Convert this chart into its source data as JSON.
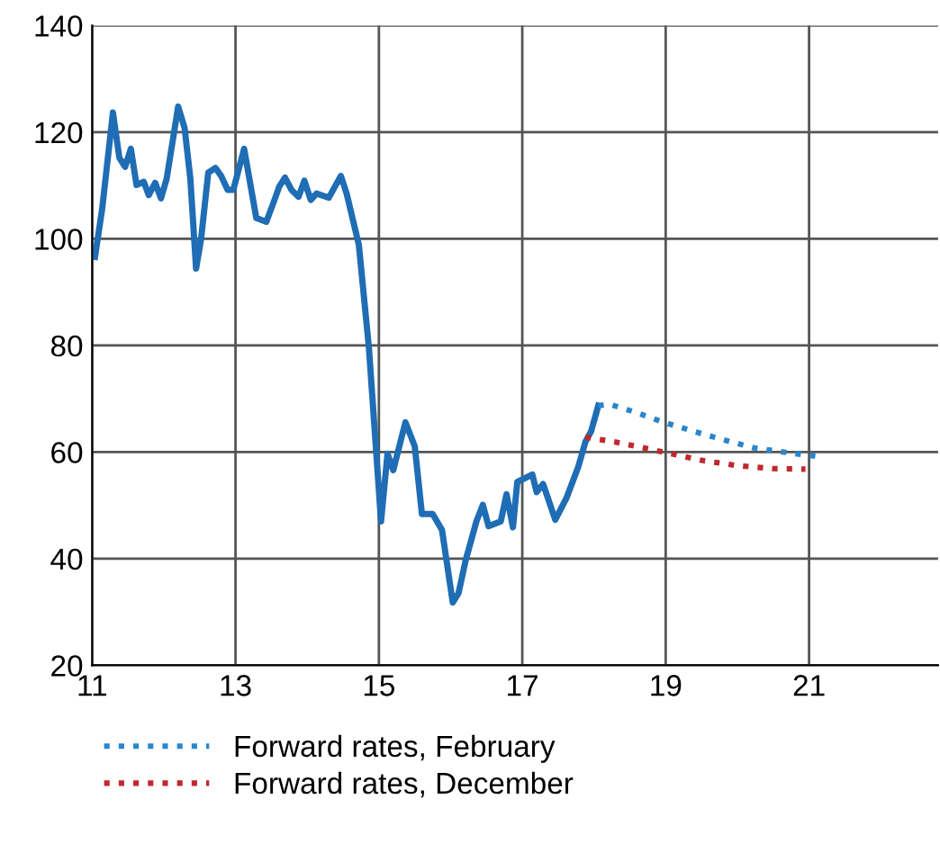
{
  "chart_data": {
    "type": "line",
    "series": [
      {
        "color": "#1f6db4",
        "line_style": "solid",
        "x": [
          11.04,
          11.14,
          11.29,
          11.38,
          11.46,
          11.54,
          11.62,
          11.72,
          11.79,
          11.88,
          11.96,
          12.04,
          12.2,
          12.29,
          12.37,
          12.45,
          12.52,
          12.62,
          12.72,
          12.8,
          12.89,
          12.97,
          13.12,
          13.29,
          13.43,
          13.53,
          13.61,
          13.69,
          13.78,
          13.88,
          13.96,
          14.05,
          14.13,
          14.3,
          14.47,
          14.55,
          14.72,
          14.86,
          15.03,
          15.12,
          15.2,
          15.37,
          15.5,
          15.6,
          15.75,
          15.88,
          16.03,
          16.11,
          16.21,
          16.36,
          16.45,
          16.53,
          16.7,
          16.78,
          16.87,
          16.93,
          17.14,
          17.2,
          17.29,
          17.46,
          17.62,
          17.78,
          17.88,
          17.96,
          18.06
        ],
        "values": [
          96.6,
          105.6,
          123.7,
          115.2,
          113.5,
          116.9,
          110.1,
          110.7,
          108.2,
          110.5,
          107.6,
          111.3,
          124.8,
          120.8,
          111.3,
          94.4,
          100.0,
          112.4,
          113.3,
          111.8,
          109.2,
          109.2,
          116.9,
          103.9,
          103.2,
          106.8,
          109.8,
          111.5,
          109.2,
          107.9,
          110.9,
          107.3,
          108.5,
          107.7,
          111.8,
          108.5,
          98.9,
          79.7,
          47.0,
          59.7,
          56.6,
          65.6,
          61.1,
          48.4,
          48.4,
          45.4,
          31.8,
          33.5,
          39.7,
          47.0,
          50.1,
          46.1,
          47.0,
          52.1,
          45.9,
          54.4,
          55.8,
          52.5,
          54.0,
          47.3,
          51.5,
          57.2,
          61.9,
          63.9,
          68.7
        ]
      },
      {
        "name": "Forward rates, February",
        "color": "#2a86cc",
        "line_style": "dotted",
        "x": [
          18.06,
          18.21,
          18.55,
          18.97,
          19.39,
          19.81,
          20.23,
          20.65,
          21.16
        ],
        "values": [
          68.7,
          69.0,
          67.6,
          65.6,
          63.9,
          62.3,
          60.8,
          60.0,
          59.1
        ]
      },
      {
        "name": "Forward rates, December",
        "color": "#c0282d",
        "line_style": "dotted",
        "x": [
          17.88,
          18.3,
          18.97,
          19.48,
          19.98,
          20.49,
          20.95
        ],
        "values": [
          62.8,
          61.9,
          60.0,
          58.5,
          57.5,
          56.9,
          56.8
        ]
      }
    ],
    "xlim": [
      11,
      22.8
    ],
    "xticks": [
      11,
      13,
      15,
      17,
      19,
      21
    ],
    "ylim": [
      20,
      140
    ],
    "yticks": [
      20,
      40,
      60,
      80,
      100,
      120,
      140
    ],
    "grid": true,
    "legend": "bottom left",
    "marker": "none"
  }
}
